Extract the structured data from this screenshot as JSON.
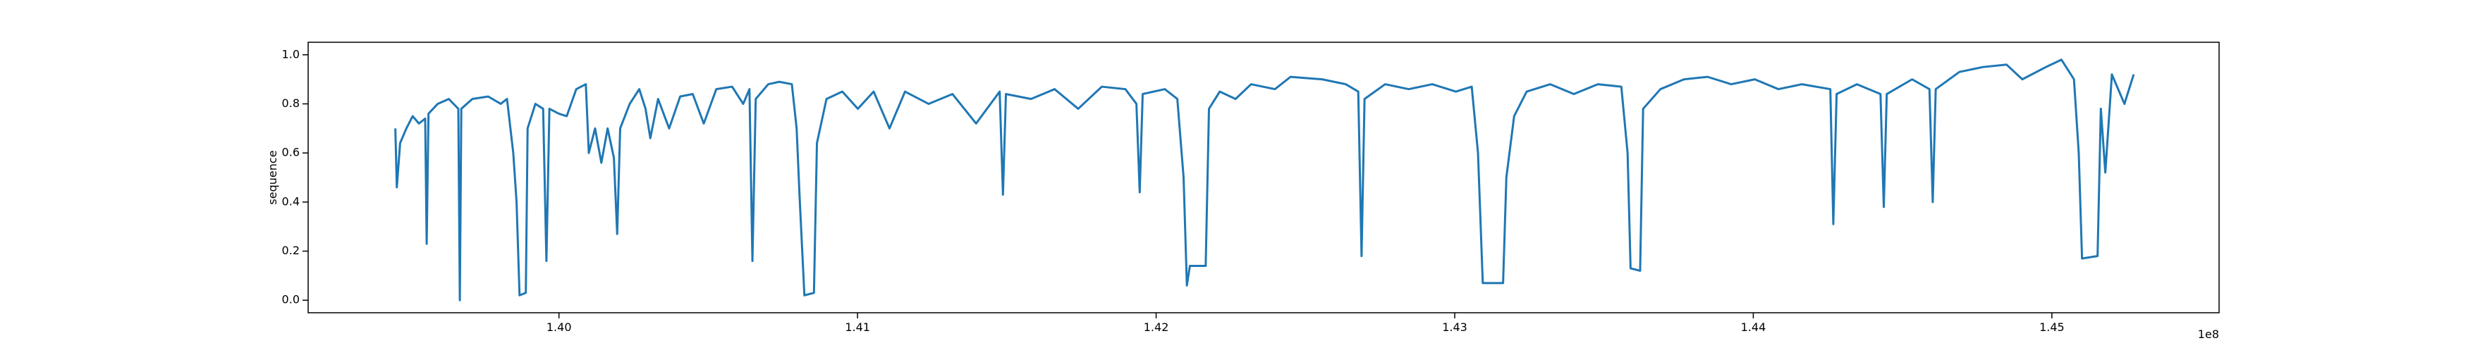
{
  "chart_data": {
    "type": "line",
    "ylabel": "sequence",
    "x_offset_label": "1e8",
    "color": "#1f77b4",
    "x": [
      1.39452,
      1.39457,
      1.39468,
      1.39489,
      1.3951,
      1.39531,
      1.39552,
      1.39557,
      1.39563,
      1.39594,
      1.39631,
      1.39663,
      1.39668,
      1.39673,
      1.3971,
      1.39763,
      1.39805,
      1.39826,
      1.39847,
      1.39858,
      1.39868,
      1.39889,
      1.39895,
      1.39921,
      1.39947,
      1.39958,
      1.39968,
      1.4,
      1.40026,
      1.40058,
      1.4009,
      1.401,
      1.40121,
      1.40142,
      1.40163,
      1.40184,
      1.40195,
      1.40205,
      1.40237,
      1.40269,
      1.4029,
      1.40306,
      1.40332,
      1.40369,
      1.40406,
      1.40448,
      1.40485,
      1.40527,
      1.4058,
      1.40617,
      1.40638,
      1.40648,
      1.40659,
      1.40701,
      1.40738,
      1.4078,
      1.40796,
      1.40806,
      1.40822,
      1.40854,
      1.40864,
      1.40896,
      1.40949,
      1.41001,
      1.41054,
      1.41107,
      1.41159,
      1.41238,
      1.41318,
      1.41397,
      1.41476,
      1.41487,
      1.41497,
      1.41581,
      1.4166,
      1.41739,
      1.41818,
      1.41897,
      1.41934,
      1.41945,
      1.41955,
      1.42029,
      1.42071,
      1.42092,
      1.42103,
      1.42113,
      1.42166,
      1.42177,
      1.42213,
      1.42266,
      1.42318,
      1.42398,
      1.4245,
      1.42556,
      1.42635,
      1.42677,
      1.42688,
      1.42698,
      1.42767,
      1.42846,
      1.42925,
      1.43004,
      1.43057,
      1.43078,
      1.43094,
      1.43162,
      1.43173,
      1.43199,
      1.43241,
      1.4332,
      1.43399,
      1.43479,
      1.43558,
      1.43579,
      1.43589,
      1.43621,
      1.43631,
      1.43689,
      1.43768,
      1.43847,
      1.43926,
      1.44005,
      1.44084,
      1.44163,
      1.44258,
      1.44268,
      1.44279,
      1.44347,
      1.44426,
      1.44437,
      1.44447,
      1.44532,
      1.4459,
      1.44601,
      1.44611,
      1.4469,
      1.44769,
      1.44848,
      1.44901,
      1.4498,
      1.45032,
      1.45074,
      1.4509,
      1.45101,
      1.45153,
      1.45164,
      1.45179,
      1.45201,
      1.45243,
      1.45274
    ],
    "values": [
      0.7,
      0.46,
      0.64,
      0.7,
      0.75,
      0.72,
      0.74,
      0.23,
      0.76,
      0.8,
      0.82,
      0.78,
      0.0,
      0.78,
      0.82,
      0.83,
      0.8,
      0.82,
      0.6,
      0.4,
      0.02,
      0.03,
      0.7,
      0.8,
      0.78,
      0.16,
      0.78,
      0.76,
      0.75,
      0.86,
      0.88,
      0.6,
      0.7,
      0.56,
      0.7,
      0.58,
      0.27,
      0.7,
      0.8,
      0.86,
      0.78,
      0.66,
      0.82,
      0.7,
      0.83,
      0.84,
      0.72,
      0.86,
      0.87,
      0.8,
      0.86,
      0.16,
      0.82,
      0.88,
      0.89,
      0.88,
      0.7,
      0.42,
      0.02,
      0.03,
      0.64,
      0.82,
      0.85,
      0.78,
      0.85,
      0.7,
      0.85,
      0.8,
      0.84,
      0.72,
      0.85,
      0.43,
      0.84,
      0.82,
      0.86,
      0.78,
      0.87,
      0.86,
      0.8,
      0.44,
      0.84,
      0.86,
      0.82,
      0.5,
      0.06,
      0.14,
      0.14,
      0.78,
      0.85,
      0.82,
      0.88,
      0.86,
      0.91,
      0.9,
      0.88,
      0.85,
      0.18,
      0.82,
      0.88,
      0.86,
      0.88,
      0.85,
      0.87,
      0.6,
      0.07,
      0.07,
      0.5,
      0.75,
      0.85,
      0.88,
      0.84,
      0.88,
      0.87,
      0.6,
      0.13,
      0.12,
      0.78,
      0.86,
      0.9,
      0.91,
      0.88,
      0.9,
      0.86,
      0.88,
      0.86,
      0.31,
      0.84,
      0.88,
      0.84,
      0.38,
      0.84,
      0.9,
      0.86,
      0.4,
      0.86,
      0.93,
      0.95,
      0.96,
      0.9,
      0.95,
      0.98,
      0.9,
      0.6,
      0.17,
      0.18,
      0.78,
      0.52,
      0.92,
      0.8,
      0.92
    ],
    "xlim": [
      1.3916,
      1.4556
    ],
    "xticks": [
      {
        "value": 1.4,
        "label": "1.40"
      },
      {
        "value": 1.41,
        "label": "1.41"
      },
      {
        "value": 1.42,
        "label": "1.42"
      },
      {
        "value": 1.43,
        "label": "1.43"
      },
      {
        "value": 1.44,
        "label": "1.44"
      },
      {
        "value": 1.45,
        "label": "1.45"
      }
    ],
    "ylim": [
      -0.051,
      1.051
    ],
    "yticks": [
      {
        "value": 0.0,
        "label": "0.0"
      },
      {
        "value": 0.2,
        "label": "0.2"
      },
      {
        "value": 0.4,
        "label": "0.4"
      },
      {
        "value": 0.6,
        "label": "0.6"
      },
      {
        "value": 0.8,
        "label": "0.8"
      },
      {
        "value": 1.0,
        "label": "1.0"
      }
    ],
    "grid": false
  }
}
